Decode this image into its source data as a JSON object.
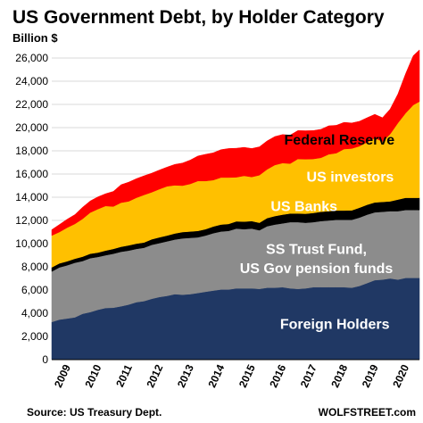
{
  "chart_data": {
    "type": "area",
    "stacked": true,
    "title": "US Government Debt, by Holder Category",
    "subtitle": "Billion $",
    "ylim": [
      0,
      27000
    ],
    "yticks": [
      0,
      2000,
      4000,
      6000,
      8000,
      10000,
      12000,
      14000,
      16000,
      18000,
      20000,
      22000,
      24000,
      26000
    ],
    "ytick_labels": [
      "0",
      "2,000",
      "4,000",
      "6,000",
      "8,000",
      "10,000",
      "12,000",
      "14,000",
      "16,000",
      "18,000",
      "20,000",
      "22,000",
      "24,000",
      "26,000"
    ],
    "xlim": [
      2009.0,
      2020.95
    ],
    "xticks": [
      2009,
      2010,
      2011,
      2012,
      2013,
      2014,
      2015,
      2016,
      2017,
      2018,
      2019,
      2020
    ],
    "xtick_labels": [
      "2009",
      "2010",
      "2011",
      "2012",
      "2013",
      "2014",
      "2015",
      "2016",
      "2017",
      "2018",
      "2019",
      "2020"
    ],
    "x": [
      2009.0,
      2009.25,
      2009.5,
      2009.75,
      2010.0,
      2010.25,
      2010.5,
      2010.75,
      2011.0,
      2011.25,
      2011.5,
      2011.75,
      2012.0,
      2012.25,
      2012.5,
      2012.75,
      2013.0,
      2013.25,
      2013.5,
      2013.75,
      2014.0,
      2014.25,
      2014.5,
      2014.75,
      2015.0,
      2015.25,
      2015.5,
      2015.75,
      2016.0,
      2016.25,
      2016.5,
      2016.75,
      2017.0,
      2017.25,
      2017.5,
      2017.75,
      2018.0,
      2018.25,
      2018.5,
      2018.75,
      2019.0,
      2019.25,
      2019.5,
      2019.75,
      2020.0,
      2020.25,
      2020.5,
      2020.75,
      2020.95
    ],
    "series": [
      {
        "name": "Foreign Holders",
        "color": "#203864",
        "values": [
          3250,
          3450,
          3550,
          3650,
          3950,
          4100,
          4300,
          4450,
          4480,
          4600,
          4750,
          4950,
          5050,
          5250,
          5400,
          5500,
          5650,
          5600,
          5650,
          5750,
          5850,
          5950,
          6050,
          6050,
          6150,
          6150,
          6150,
          6100,
          6200,
          6200,
          6250,
          6150,
          6100,
          6150,
          6250,
          6250,
          6250,
          6250,
          6250,
          6200,
          6350,
          6600,
          6850,
          6900,
          7000,
          6900,
          7050,
          7050,
          7050
        ]
      },
      {
        "name": "SS Trust Fund, US Gov pension funds",
        "color": "#8c8c8c",
        "values": [
          4350,
          4500,
          4580,
          4700,
          4550,
          4650,
          4550,
          4550,
          4650,
          4700,
          4650,
          4600,
          4600,
          4650,
          4650,
          4700,
          4700,
          4850,
          4850,
          4800,
          4850,
          4950,
          5000,
          5050,
          5150,
          5100,
          5150,
          5050,
          5300,
          5450,
          5500,
          5700,
          5750,
          5650,
          5600,
          5700,
          5750,
          5800,
          5800,
          5850,
          5900,
          5900,
          5850,
          5850,
          5800,
          5900,
          5850,
          5850,
          5850
        ]
      },
      {
        "name": "US Banks",
        "color": "#000000",
        "values": [
          350,
          350,
          350,
          350,
          380,
          380,
          380,
          400,
          420,
          430,
          450,
          450,
          450,
          480,
          500,
          500,
          530,
          550,
          550,
          550,
          550,
          580,
          600,
          600,
          620,
          650,
          650,
          650,
          700,
          730,
          750,
          750,
          750,
          780,
          800,
          800,
          800,
          800,
          800,
          820,
          850,
          850,
          850,
          850,
          850,
          1000,
          1050,
          1050,
          1050
        ]
      },
      {
        "name": "US investors",
        "color": "#ffc000",
        "values": [
          2750,
          2700,
          2900,
          3000,
          3250,
          3550,
          3750,
          3850,
          3650,
          3800,
          3800,
          3950,
          4100,
          4050,
          4150,
          4250,
          4150,
          4000,
          4100,
          4300,
          4150,
          4000,
          4050,
          4000,
          3800,
          3950,
          3800,
          4100,
          4200,
          4400,
          4450,
          4300,
          4700,
          4700,
          4650,
          4650,
          4900,
          4950,
          5300,
          5330,
          5300,
          5400,
          5550,
          5200,
          5800,
          6600,
          7300,
          8000,
          8300
        ]
      },
      {
        "name": "Federal Reserve",
        "color": "#ff0000",
        "values": [
          500,
          650,
          720,
          800,
          1000,
          1000,
          1050,
          1050,
          1300,
          1550,
          1650,
          1650,
          1650,
          1650,
          1650,
          1650,
          1800,
          1950,
          2050,
          2150,
          2300,
          2350,
          2400,
          2500,
          2500,
          2450,
          2450,
          2450,
          2450,
          2450,
          2450,
          2450,
          2450,
          2450,
          2450,
          2450,
          2450,
          2400,
          2300,
          2200,
          2150,
          2100,
          2050,
          2050,
          2150,
          2500,
          3400,
          4250,
          4450
        ]
      }
    ],
    "annotations": [
      {
        "text": "Federal Reserve",
        "color": "#000000",
        "series": "Federal Reserve"
      },
      {
        "text": "US investors",
        "color": "#ffffff",
        "series": "US investors"
      },
      {
        "text": "US Banks",
        "color": "#ffffff",
        "series": "US Banks"
      },
      {
        "text": "SS Trust Fund,",
        "color": "#ffffff",
        "series": "SS Trust Fund, US Gov pension funds"
      },
      {
        "text": "US Gov pension funds",
        "color": "#ffffff",
        "series": "SS Trust Fund, US Gov pension funds"
      },
      {
        "text": "Foreign Holders",
        "color": "#ffffff",
        "series": "Foreign Holders"
      }
    ],
    "source": "Source: US Treasury Dept.",
    "credit": "WOLFSTREET.com",
    "grid": "horizontal",
    "legend": "none (labels on areas)"
  }
}
